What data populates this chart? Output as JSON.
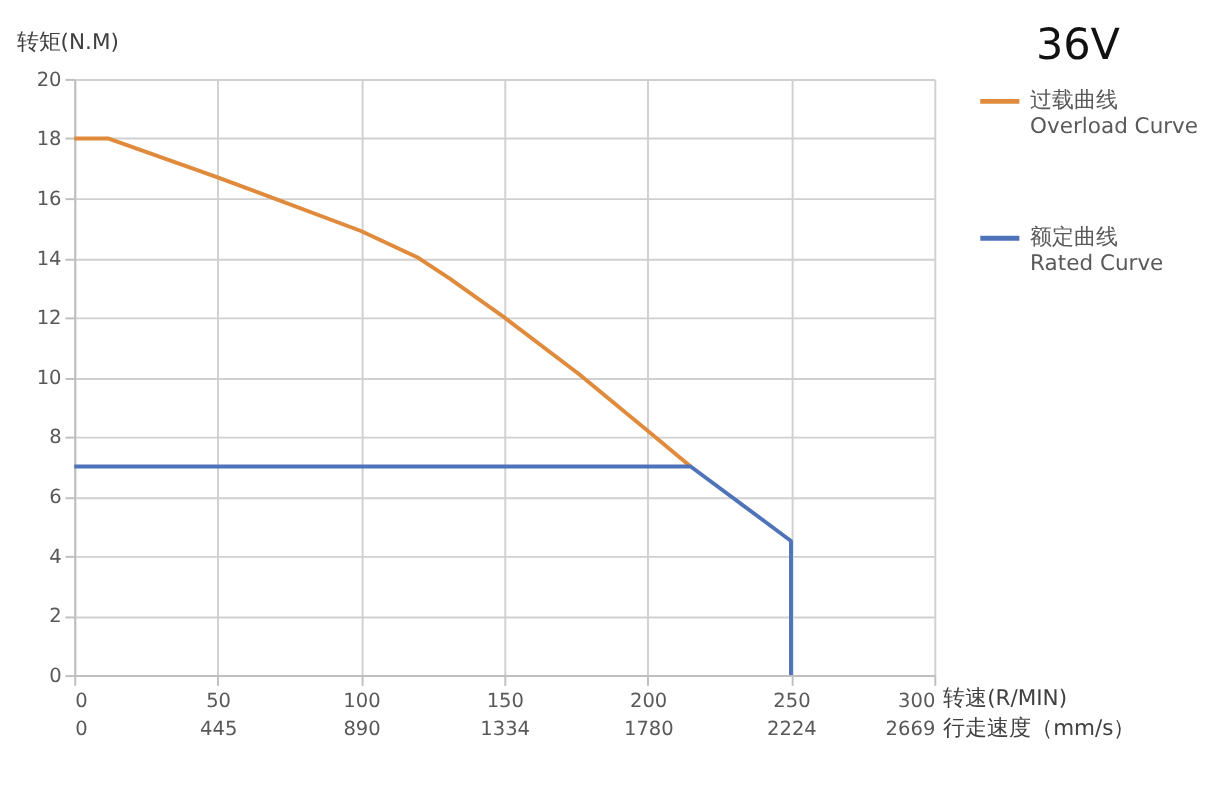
{
  "chart_data": {
    "type": "line",
    "title": "36V",
    "xlabel": "转速(R/MIN)",
    "ylabel": "转矩(N.M)",
    "x2label": "行走速度（mm/s）",
    "xlim": [
      0,
      300
    ],
    "xticks": [
      0,
      50,
      100,
      150,
      200,
      250,
      300
    ],
    "x2lim": [
      0,
      2669
    ],
    "x2ticks": [
      0,
      445,
      890,
      1334,
      1780,
      2224,
      2669
    ],
    "ylim": [
      0,
      20
    ],
    "yticks": [
      0,
      2,
      4,
      6,
      8,
      10,
      12,
      14,
      16,
      18,
      20
    ],
    "grid": true,
    "legend": "right",
    "marker": "none",
    "line_style": "solid",
    "series": [
      {
        "name": "过载曲线\nOverload Curve",
        "color": "#e08a3c",
        "x": [
          0,
          12,
          50,
          100,
          120,
          131,
          150,
          176,
          200,
          215
        ],
        "values": [
          18,
          18,
          16.7,
          14.9,
          14.0,
          13.3,
          12.0,
          10.1,
          8.2,
          7.0
        ]
      },
      {
        "name": "额定曲线\nRated Curve",
        "color": "#4f73b8",
        "x": [
          0,
          215,
          250,
          250
        ],
        "values": [
          7,
          7,
          4.5,
          0
        ]
      }
    ]
  }
}
